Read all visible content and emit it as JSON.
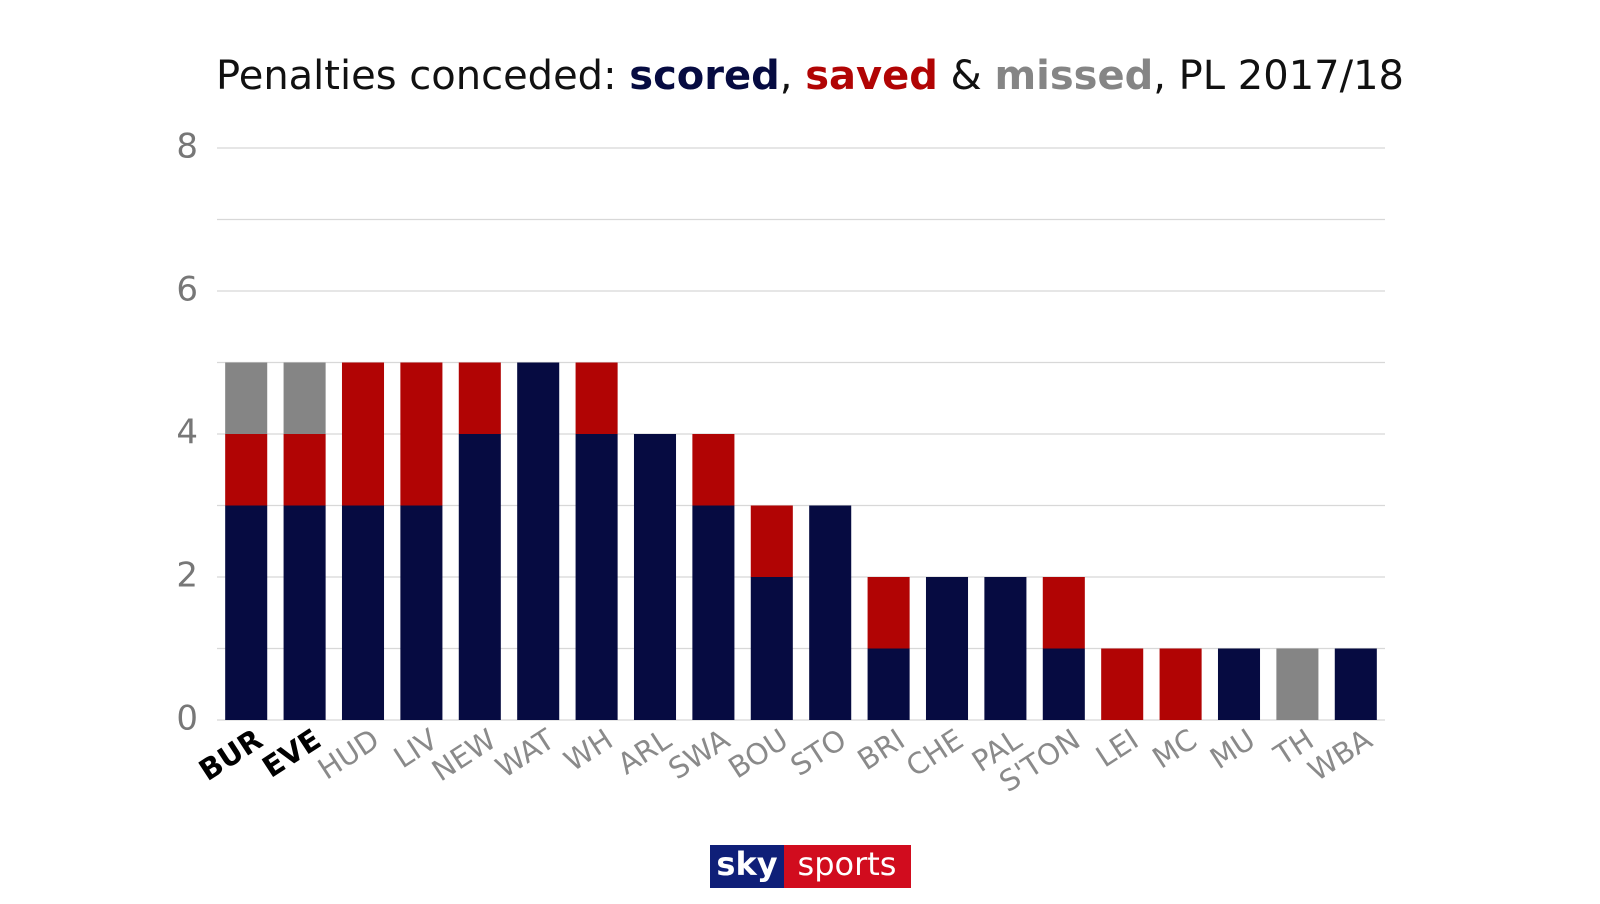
{
  "chart_data": {
    "type": "stacked-bar",
    "title_segments": [
      "Penalties conceded: ",
      ", ",
      " & ",
      ", PL 2017/18"
    ],
    "categories": [
      "BUR",
      "EVE",
      "HUD",
      "LIV",
      "NEW",
      "WAT",
      "WH",
      "ARL",
      "SWA",
      "BOU",
      "STO",
      "BRI",
      "CHE",
      "PAL",
      "S'TON",
      "LEI",
      "MC",
      "MU",
      "TH",
      "WBA"
    ],
    "highlight": [
      0,
      1
    ],
    "series": [
      {
        "name": "scored",
        "color": "#060b41",
        "values": [
          3,
          3,
          3,
          3,
          4,
          5,
          4,
          4,
          3,
          2,
          3,
          1,
          2,
          2,
          1,
          0,
          0,
          1,
          0,
          1
        ]
      },
      {
        "name": "saved",
        "color": "#b10404",
        "values": [
          1,
          1,
          2,
          2,
          1,
          0,
          1,
          0,
          1,
          1,
          0,
          1,
          0,
          0,
          1,
          1,
          1,
          0,
          0,
          0
        ]
      },
      {
        "name": "missed",
        "color": "#858585",
        "values": [
          1,
          1,
          0,
          0,
          0,
          0,
          0,
          0,
          0,
          0,
          0,
          0,
          0,
          0,
          0,
          0,
          0,
          0,
          1,
          0
        ]
      }
    ],
    "ylim": [
      0,
      8
    ],
    "yticks": [
      0,
      2,
      4,
      6,
      8
    ],
    "ygrid": [
      1,
      2,
      3,
      4,
      5,
      6,
      7,
      8
    ]
  },
  "logo": {
    "left": "sky",
    "right": "sports"
  }
}
